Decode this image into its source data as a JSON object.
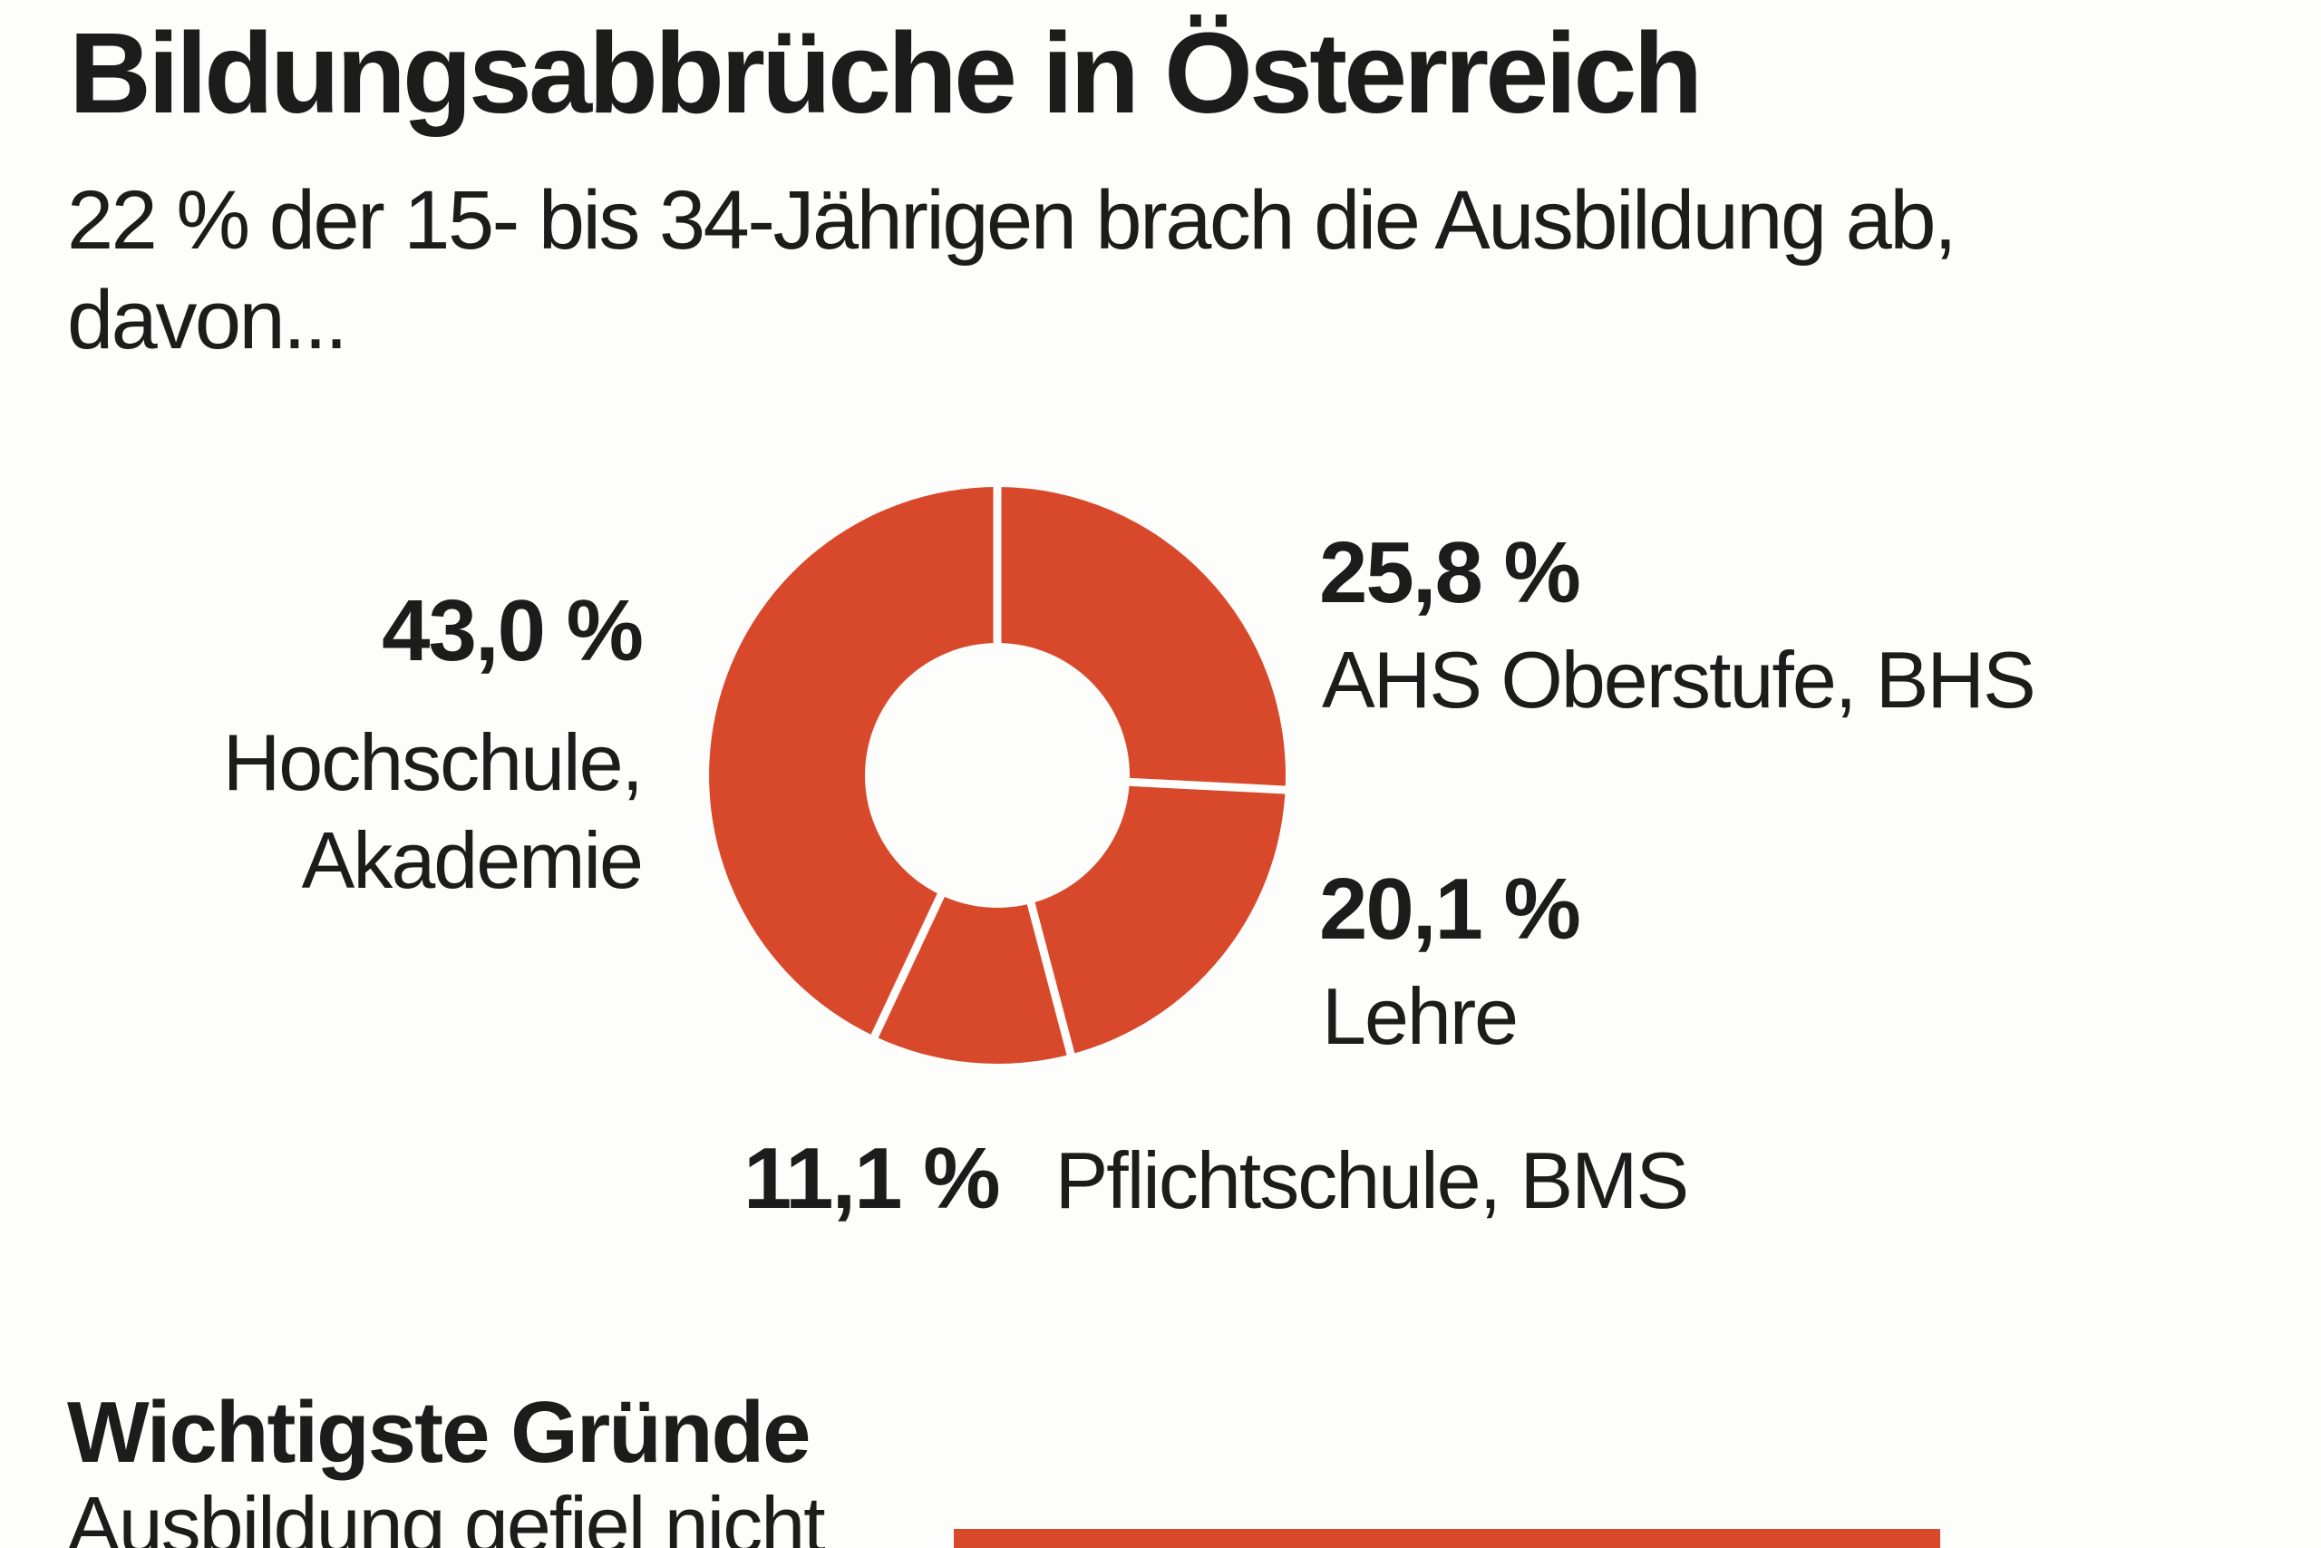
{
  "colors": {
    "accent": "#d8492b",
    "background": "#fdfdfc",
    "text": "#1c1c1c"
  },
  "header": {
    "title": "Bildungsabbrüche in Österreich",
    "subtitle_line1": "22 % der 15- bis 34-Jährigen brach die Ausbildung ab,",
    "subtitle_line2": "davon..."
  },
  "donut_labels": {
    "hochschule": {
      "value": "43,0 %",
      "line1": "Hochschule,",
      "line2": "Akademie"
    },
    "ahs": {
      "value": "25,8 %",
      "text": "AHS Oberstufe, BHS"
    },
    "lehre": {
      "value": "20,1 %",
      "text": "Lehre"
    },
    "pflichtschule": {
      "value": "11,1 %",
      "text": "Pflichtschule, BMS"
    }
  },
  "reasons": {
    "heading": "Wichtigste Gründe",
    "first_label": "Ausbildung gefiel nicht"
  },
  "chart_data": [
    {
      "type": "pie",
      "donut": true,
      "title": "Bildungsabbrüche in Österreich",
      "subtitle": "22 % der 15- bis 34-Jährigen brach die Ausbildung ab, davon...",
      "start_angle_deg": 0,
      "direction": "clockwise",
      "segment_color": "#d8492b",
      "separator_color": "#fdfdfc",
      "inner_radius_ratio": 0.46,
      "segments": [
        {
          "label": "AHS Oberstufe, BHS",
          "value": 25.8,
          "display_value": "25,8 %"
        },
        {
          "label": "Lehre",
          "value": 20.1,
          "display_value": "20,1 %"
        },
        {
          "label": "Pflichtschule, BMS",
          "value": 11.1,
          "display_value": "11,1 %"
        },
        {
          "label": "Hochschule, Akademie",
          "value": 43.0,
          "display_value": "43,0 %"
        }
      ]
    },
    {
      "type": "bar",
      "title": "Wichtigste Gründe",
      "orientation": "horizontal",
      "bar_color": "#d8492b",
      "categories": [
        "Ausbildung gefiel nicht"
      ],
      "values": [
        null
      ],
      "note": "bar chart cut off at bottom edge of image; bar length/value not visible"
    }
  ]
}
